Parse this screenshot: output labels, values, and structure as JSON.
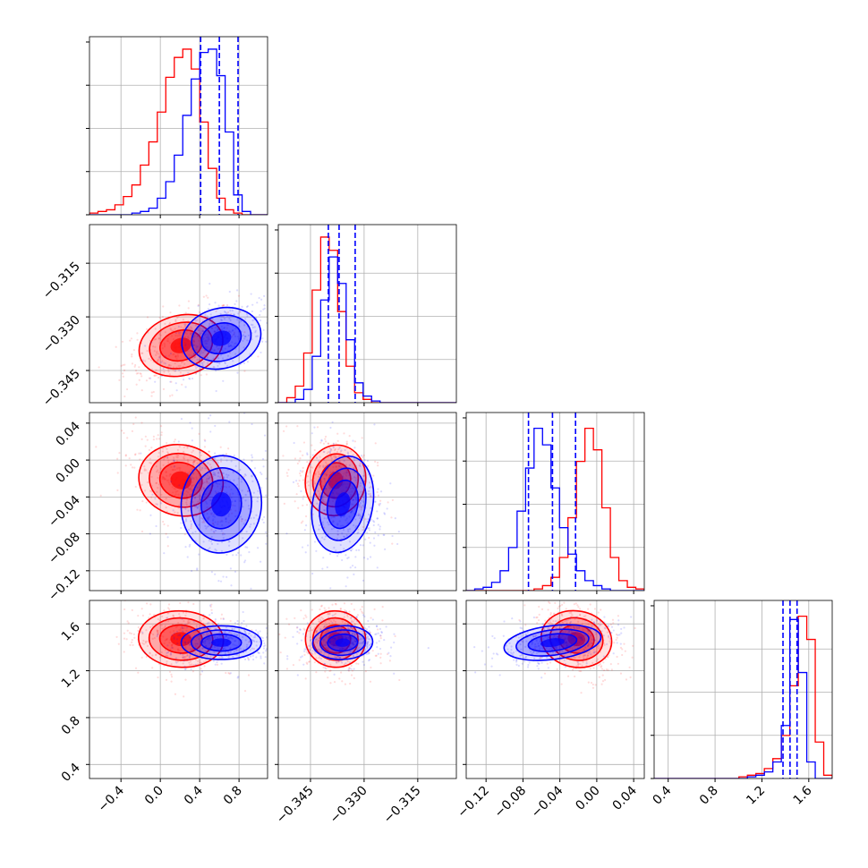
{
  "chart_data": {
    "type": "corner",
    "grid": true,
    "colors": {
      "red": "#ff0000",
      "blue": "#0000ff",
      "grid": "#b0b0b0"
    },
    "params": [
      {
        "xlim": [
          -0.72,
          1.09
        ],
        "ticks": [
          -0.4,
          0.0,
          0.4,
          0.8
        ],
        "tick_labels": [
          "−0.4",
          "0.0",
          "0.4",
          "0.8"
        ]
      },
      {
        "xlim": [
          -0.354,
          -0.3042
        ],
        "ticks": [
          -0.345,
          -0.33,
          -0.315
        ],
        "tick_labels": [
          "−0.345",
          "−0.330",
          "−0.315"
        ]
      },
      {
        "xlim": [
          -0.1415,
          0.0515
        ],
        "ticks": [
          -0.12,
          -0.08,
          -0.04,
          0.0,
          0.04
        ],
        "tick_labels": [
          "−0.12",
          "−0.08",
          "−0.04",
          "0.00",
          "0.04"
        ]
      },
      {
        "xlim": [
          0.28,
          1.8
        ],
        "ticks": [
          0.4,
          0.8,
          1.2,
          1.6
        ],
        "tick_labels": [
          "0.4",
          "0.8",
          "1.2",
          "1.6"
        ]
      }
    ],
    "quantiles_blue": [
      [
        0.41,
        0.6,
        0.79
      ],
      [
        -0.34,
        -0.337,
        -0.3325
      ],
      [
        -0.074,
        -0.048,
        -0.023
      ],
      [
        1.38,
        1.44,
        1.5
      ]
    ],
    "series": [
      {
        "name": "red",
        "color": "#ff0000",
        "mean": [
          0.21,
          -0.338,
          -0.022,
          1.47
        ],
        "sd": [
          0.18,
          0.0035,
          0.016,
          0.1
        ],
        "hist": [
          [
            0.01,
            0.02,
            0.03,
            0.06,
            0.11,
            0.18,
            0.3,
            0.44,
            0.62,
            0.83,
            0.95,
            1.0,
            0.88,
            0.56,
            0.28,
            0.1,
            0.03,
            0.01,
            0.0,
            0.0,
            0.0
          ],
          [
            0.0,
            0.03,
            0.1,
            0.3,
            0.68,
            1.0,
            0.92,
            0.55,
            0.22,
            0.06,
            0.02,
            0.0,
            0.0,
            0.0,
            0.0,
            0.0,
            0.0,
            0.0,
            0.0,
            0.0,
            0.0
          ],
          [
            0.0,
            0.0,
            0.0,
            0.0,
            0.0,
            0.0,
            0.0,
            0.0,
            0.01,
            0.03,
            0.08,
            0.2,
            0.44,
            0.78,
            0.98,
            0.85,
            0.5,
            0.2,
            0.06,
            0.02,
            0.01
          ],
          [
            0.0,
            0.0,
            0.0,
            0.0,
            0.0,
            0.0,
            0.0,
            0.0,
            0.0,
            0.0,
            0.01,
            0.02,
            0.03,
            0.06,
            0.12,
            0.26,
            0.56,
            0.98,
            0.84,
            0.22,
            0.02
          ]
        ]
      },
      {
        "name": "blue",
        "color": "#0000ff",
        "mean": [
          0.62,
          -0.336,
          -0.048,
          1.44
        ],
        "sd": [
          0.17,
          0.0035,
          0.022,
          0.06
        ],
        "hist": [
          [
            0.0,
            0.0,
            0.0,
            0.0,
            0.0,
            0.01,
            0.02,
            0.04,
            0.1,
            0.2,
            0.36,
            0.6,
            0.82,
            0.98,
            1.0,
            0.84,
            0.5,
            0.12,
            0.02,
            0.0,
            0.0
          ],
          [
            0.0,
            0.0,
            0.02,
            0.08,
            0.28,
            0.62,
            0.88,
            0.72,
            0.38,
            0.12,
            0.04,
            0.01,
            0.0,
            0.0,
            0.0,
            0.0,
            0.0,
            0.0,
            0.0,
            0.0,
            0.0
          ],
          [
            0.0,
            0.01,
            0.02,
            0.05,
            0.12,
            0.26,
            0.48,
            0.74,
            0.98,
            0.88,
            0.62,
            0.38,
            0.22,
            0.12,
            0.06,
            0.03,
            0.01,
            0.0,
            0.0,
            0.0,
            0.0
          ],
          [
            0.0,
            0.0,
            0.0,
            0.0,
            0.0,
            0.0,
            0.0,
            0.0,
            0.0,
            0.0,
            0.0,
            0.01,
            0.02,
            0.04,
            0.1,
            0.32,
            0.96,
            0.64,
            0.1,
            0.0,
            0.0
          ]
        ]
      }
    ],
    "correlations": {
      "red": {
        "1,0": 0.45,
        "2,0": -0.35,
        "2,1": -0.2,
        "3,0": -0.1,
        "3,1": -0.15,
        "3,2": -0.3
      },
      "blue": {
        "1,0": 0.45,
        "2,0": -0.1,
        "2,1": -0.15,
        "3,0": 0.0,
        "3,1": 0.1,
        "3,2": 0.45
      }
    }
  }
}
